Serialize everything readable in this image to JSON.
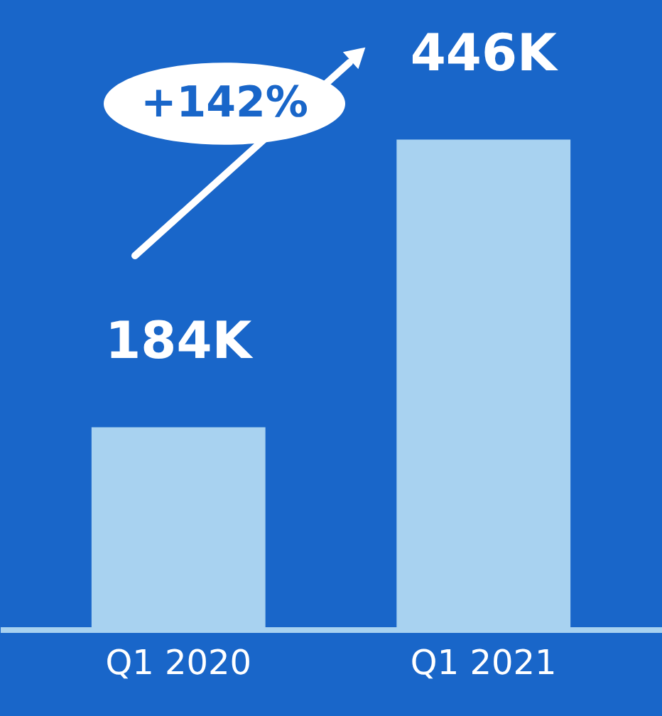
{
  "chart_data": {
    "type": "bar",
    "categories": [
      "Q1 2020",
      "Q1 2021"
    ],
    "values": [
      184000,
      446000
    ],
    "color": "#a8d2f0",
    "value_labels": [
      "184K",
      "446K"
    ],
    "annotations": [
      "+142%"
    ],
    "grid": false
  }
}
